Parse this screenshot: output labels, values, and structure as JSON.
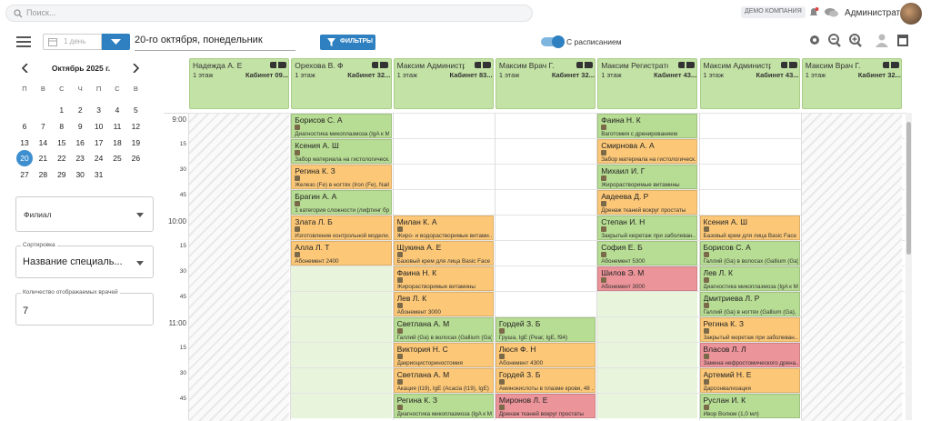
{
  "topbar": {
    "search_placeholder": "Поиск...",
    "company": "ДЕМО КОМПАНИЯ",
    "user": "Администратор"
  },
  "toolbar": {
    "view": "1 день",
    "date": "20-го октября, понедельник",
    "filters_button": "ФИЛЬТРЫ",
    "schedule_toggle": "С расписанием"
  },
  "calendar": {
    "month": "Октябрь 2025 г.",
    "weekdays": [
      "П",
      "В",
      "С",
      "Ч",
      "П",
      "С",
      "В"
    ],
    "weeks": [
      [
        null,
        null,
        1,
        2,
        3,
        4,
        5
      ],
      [
        6,
        7,
        8,
        9,
        10,
        11,
        12
      ],
      [
        13,
        14,
        15,
        16,
        17,
        18,
        19
      ],
      [
        20,
        21,
        22,
        23,
        24,
        25,
        26
      ],
      [
        27,
        28,
        29,
        30,
        31,
        null,
        null
      ]
    ],
    "selected": 20
  },
  "filters": {
    "branch": "Филиал",
    "sort_label": "Сортировка",
    "sort_value": "Название специаль...",
    "count_label": "Количество отображаемых врачей",
    "count_value": 7
  },
  "schedule": {
    "times": [
      "9:00",
      "15",
      "30",
      "45",
      "10:00",
      "15",
      "30",
      "45",
      "11:00",
      "15",
      "30",
      "45"
    ],
    "doctors": [
      {
        "name": "Надежда А. Е",
        "floor": "1 этаж",
        "room": "Кабинет 09...",
        "off": true,
        "slots": []
      },
      {
        "name": "Орехова В. Ф",
        "floor": "1 этаж",
        "room": "Кабинет 32...",
        "off": false,
        "slots": [
          {
            "patient": "Борисов С. А",
            "service": "Диагностика микоплазмоза (IgA к M...",
            "color": "#b7dc93"
          },
          {
            "patient": "Ксения А. Ш",
            "service": "Забор материала на гистологическ...",
            "color": "#b7dc93"
          },
          {
            "patient": "Регина К. З",
            "service": "Железо (Fe) в ногтях (Iron (Fe), Nails)",
            "color": "#fcc878"
          },
          {
            "patient": "Брагин А. А",
            "service": "1 категория сложности (лифтинг бр...",
            "color": "#b7dc93"
          },
          {
            "patient": "Злата Л. Б",
            "service": "Изготовление контрольной модели...",
            "color": "#fcc878"
          },
          {
            "patient": "Алла Л. Т",
            "service": "Абонемент 2400",
            "color": "#fcc878"
          },
          {
            "color": "#e8f4dc"
          },
          {
            "color": "#e8f4dc"
          },
          {
            "color": "#e8f4dc"
          },
          {
            "color": "#e8f4dc"
          },
          {
            "color": "#e8f4dc"
          },
          {
            "color": "#e8f4dc"
          }
        ]
      },
      {
        "name": "Максим Администра...",
        "floor": "1 этаж",
        "room": "Кабинет 83...",
        "off": false,
        "slots": [
          null,
          null,
          null,
          null,
          {
            "patient": "Милан К. А",
            "service": "Жиро- и водорастворимые витами...",
            "color": "#fcc878"
          },
          {
            "patient": "Щукина А. Е",
            "service": "Базовый крем для лица Basic Face C...",
            "color": "#fcc878"
          },
          {
            "patient": "Фаина Н. К",
            "service": "Жирорастворимые витамины",
            "color": "#fcc878"
          },
          {
            "patient": "Лев Л. К",
            "service": "Абонемент 3000",
            "color": "#fcc878"
          },
          {
            "patient": "Светлана А. М",
            "service": "Галлий (Ga) в волосах (Gallium (Ga)...",
            "color": "#b7dc93"
          },
          {
            "patient": "Виктория Н. С",
            "service": "Дакриоцисториностомия",
            "color": "#fcc878"
          },
          {
            "patient": "Светлана А. М",
            "service": "Акация (t19), IgE (Acacia (t19), IgE)",
            "color": "#fcc878"
          },
          {
            "patient": "Регина К. З",
            "service": "Диагностика микоплазмоза (IgA к M...",
            "color": "#b7dc93"
          }
        ]
      },
      {
        "name": "Максим Врач Г.",
        "floor": "1 этаж",
        "room": "Кабинет 32...",
        "off": false,
        "slots": [
          null,
          null,
          null,
          null,
          null,
          null,
          null,
          null,
          {
            "patient": "Гордей З. Б",
            "service": "Груша, IgE (Pear, IgE, f94)",
            "color": "#b7dc93"
          },
          {
            "patient": "Люся Ф. Н",
            "service": "Абонемент 4300",
            "color": "#fcc878"
          },
          {
            "patient": "Гордей З. Б",
            "service": "Аминокислоты в плазме крови, 48 ...",
            "color": "#fcc878"
          },
          {
            "patient": "Миронов Л. Е",
            "service": "Дренаж тканей вокруг простаты",
            "color": "#eb9499"
          }
        ]
      },
      {
        "name": "Максим Регистратор...",
        "floor": "1 этаж",
        "room": "Кабинет 43...",
        "off": false,
        "slots": [
          {
            "patient": "Фаина Н. К",
            "service": "Ваготомия с дренированием",
            "color": "#b7dc93"
          },
          {
            "patient": "Смирнова А. А",
            "service": "Забор материала на гистологическ...",
            "color": "#fcc878"
          },
          {
            "patient": "Михаил И. Г",
            "service": "Жирорастворимые витамины",
            "color": "#b7dc93"
          },
          {
            "patient": "Авдеева Д. Р",
            "service": "Дренаж тканей вокруг простаты",
            "color": "#fcc878"
          },
          {
            "patient": "Степан И. Н",
            "service": "Закрытый кюретаж при заболеван...",
            "color": "#b7dc93"
          },
          {
            "patient": "София Е. Б",
            "service": "Абонемент 5300",
            "color": "#b7dc93"
          },
          {
            "patient": "Шилов Э. М",
            "service": "Абонемент 3000",
            "color": "#eb9499"
          },
          {
            "color": "#e8f4dc"
          },
          {
            "color": "#e8f4dc"
          },
          {
            "color": "#e8f4dc"
          },
          {
            "color": "#e8f4dc"
          },
          {
            "color": "#e8f4dc"
          }
        ]
      },
      {
        "name": "Максим Администра...",
        "floor": "1 этаж",
        "room": "Кабинет 43...",
        "off": false,
        "slots": [
          null,
          null,
          null,
          null,
          {
            "patient": "Ксения А. Ш",
            "service": "Базовый крем для лица Basic Face C...",
            "color": "#fcc878"
          },
          {
            "patient": "Борисов С. А",
            "service": "Галлий (Ga) в волосах (Gallium (Ga)...",
            "color": "#b7dc93"
          },
          {
            "patient": "Лев Л. К",
            "service": "Диагностика микоплазмоза (IgA к M...",
            "color": "#b7dc93"
          },
          {
            "patient": "Дмитриева Л. Р",
            "service": "Галлий (Ga) в ногтях (Gallium (Ga), ...",
            "color": "#b7dc93"
          },
          {
            "patient": "Регина К. З",
            "service": "Закрытый кюретаж при заболеван...",
            "color": "#fcc878"
          },
          {
            "patient": "Власов Л. Л",
            "service": "Замена нефростомического дрена...",
            "color": "#eb9499"
          },
          {
            "patient": "Артемий Н. Е",
            "service": "Дарсонвализация",
            "color": "#fcc878"
          },
          {
            "patient": "Руслан И. К",
            "service": "Ивор Волюм (1,0 мл)",
            "color": "#b7dc93"
          }
        ]
      },
      {
        "name": "Максим Врач Г.",
        "floor": "1 этаж",
        "room": "Кабинет 32...",
        "off": true,
        "slots": []
      }
    ]
  }
}
